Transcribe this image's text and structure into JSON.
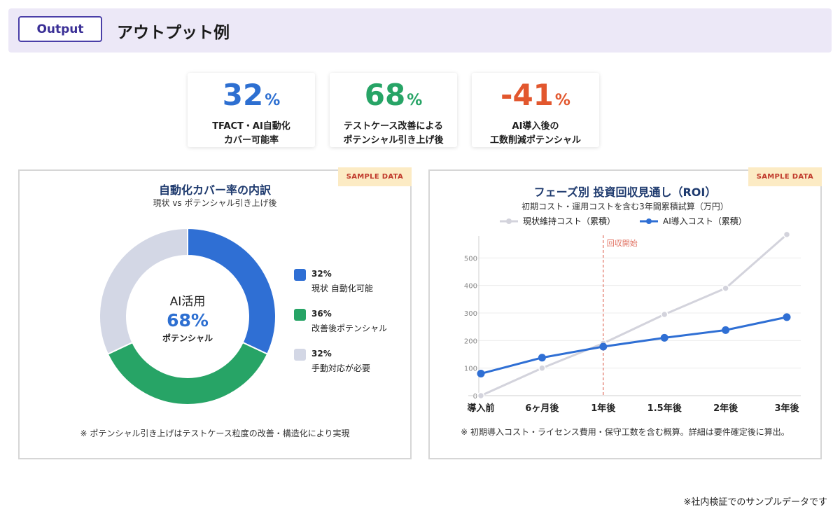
{
  "header": {
    "badge": "Output",
    "title": "アウトプット例"
  },
  "kpis": [
    {
      "value": "32",
      "unit": "%",
      "color": "#2d6fd1",
      "line1": "TFACT・AI自動化",
      "line2": "カバー可能率"
    },
    {
      "value": "68",
      "unit": "%",
      "color": "#27a466",
      "line1": "テストケース改善による",
      "line2": "ポテンシャル引き上げ後"
    },
    {
      "value": "-41",
      "unit": "%",
      "color": "#e2572e",
      "line1": "AI導入後の",
      "line2": "工数削減ポテンシャル"
    }
  ],
  "donut_panel": {
    "tag": "SAMPLE DATA",
    "title": "自動化カバー率の内訳",
    "subtitle": "現状 vs ポテンシャル引き上げ後",
    "center_line1": "AI活用",
    "center_value": "68%",
    "center_line3": "ポテンシャル",
    "note": "※ ポテンシャル引き上げはテストケース粒度の改善・構造化により実現"
  },
  "roi_panel": {
    "tag": "SAMPLE DATA",
    "title": "フェーズ別 投資回収見通し（ROI）",
    "subtitle": "初期コスト・運用コストを含む3年間累積試算（万円）",
    "annotation": "回収開始",
    "note": "※ 初期導入コスト・ライセンス費用・保守工数を含む概算。詳細は要件確定後に算出。"
  },
  "footer_note": "※社内検証でのサンプルデータです",
  "chart_data": [
    {
      "type": "pie",
      "variant": "donut",
      "title": "自動化カバー率の内訳",
      "categories": [
        "現状 自動化可能",
        "改善後ポテンシャル",
        "手動対応が必要"
      ],
      "values": [
        32,
        36,
        32
      ],
      "labels": [
        "32%",
        "36%",
        "32%"
      ],
      "colors": [
        "#2f6fd4",
        "#27a466",
        "#d3d7e5"
      ],
      "legend_position": "right"
    },
    {
      "type": "line",
      "title": "フェーズ別 投資回収見通し（ROI）",
      "x": [
        "導入前",
        "6ヶ月後",
        "1年後",
        "1.5年後",
        "2年後",
        "3年後"
      ],
      "series": [
        {
          "name": "現状維持コスト（累積）",
          "values": [
            0,
            100,
            190,
            295,
            390,
            585
          ],
          "color": "#d3d3dc"
        },
        {
          "name": "AI導入コスト（累積）",
          "values": [
            80,
            138,
            178,
            210,
            238,
            285
          ],
          "color": "#2f6fd4"
        }
      ],
      "yticks": [
        0,
        100,
        200,
        300,
        400,
        500
      ],
      "ylim": [
        0,
        600
      ],
      "grid": true,
      "legend_position": "top",
      "vline": {
        "x": "1年後",
        "label": "回収開始",
        "color": "#e07060"
      }
    }
  ]
}
